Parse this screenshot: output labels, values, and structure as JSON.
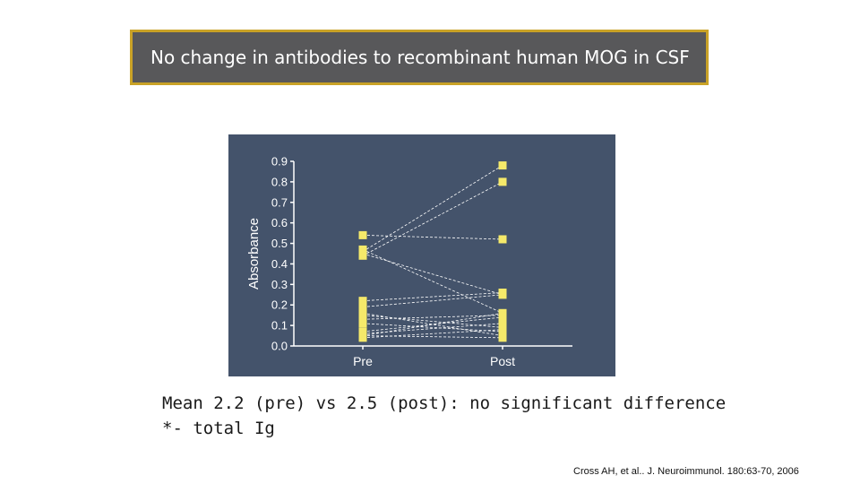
{
  "slide": {
    "title": "No change in antibodies to recombinant human MOG in CSF",
    "caption_line1": "Mean 2.2 (pre) vs 2.5 (post): no significant difference",
    "caption_line2": "*- total Ig",
    "citation": "Cross AH, et al.. J. Neuroimmunol. 180:63-70, 2006"
  },
  "colors": {
    "title_bg": "#58585a",
    "title_border": "#c9a227",
    "plot_bg": "#44536b",
    "marker": "#f5e96a",
    "axis": "#ffffff"
  },
  "chart_data": {
    "type": "line",
    "ylabel": "Absorbance",
    "xlabel": "",
    "categories": [
      "Pre",
      "Post"
    ],
    "ylim": [
      0,
      0.9
    ],
    "yticks": [
      "0.0",
      "0.1",
      "0.2",
      "0.3",
      "0.4",
      "0.5",
      "0.6",
      "0.7",
      "0.8",
      "0.9"
    ],
    "grid": false,
    "pairs": [
      [
        0.54,
        0.52
      ],
      [
        0.46,
        0.88
      ],
      [
        0.44,
        0.8
      ],
      [
        0.47,
        0.16
      ],
      [
        0.45,
        0.25
      ],
      [
        0.22,
        0.26
      ],
      [
        0.19,
        0.25
      ],
      [
        0.16,
        0.05
      ],
      [
        0.15,
        0.09
      ],
      [
        0.13,
        0.15
      ],
      [
        0.11,
        0.07
      ],
      [
        0.07,
        0.14
      ],
      [
        0.06,
        0.11
      ],
      [
        0.05,
        0.16
      ],
      [
        0.04,
        0.08
      ],
      [
        0.05,
        0.04
      ]
    ]
  }
}
